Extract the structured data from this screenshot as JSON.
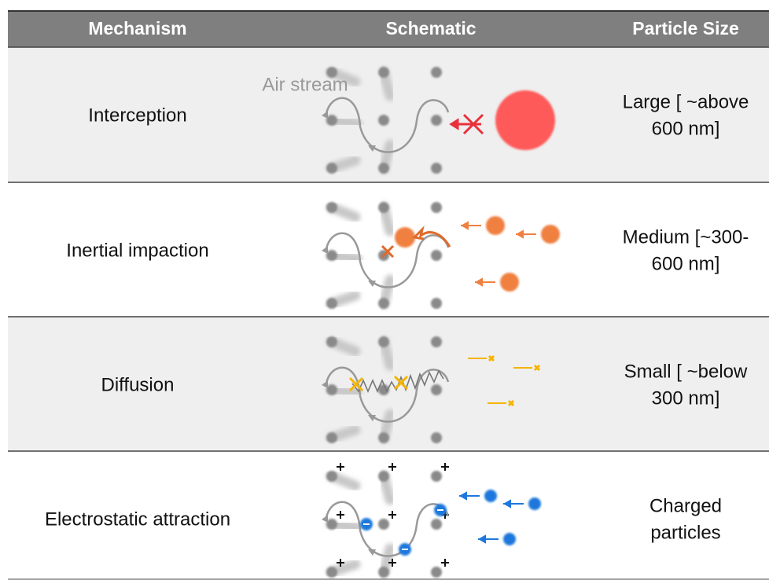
{
  "header": {
    "columns": [
      "Mechanism",
      "Schematic",
      "Particle Size"
    ]
  },
  "air_stream_label": "Air stream",
  "rows": [
    {
      "mechanism": "Interception",
      "particle_size": [
        "Large [ ~above",
        "600 nm]"
      ]
    },
    {
      "mechanism": "Inertial impaction",
      "particle_size": [
        "Medium [~300-",
        "600 nm]"
      ]
    },
    {
      "mechanism": "Diffusion",
      "particle_size": [
        "Small [ ~below",
        "300 nm]"
      ]
    },
    {
      "mechanism": "Electrostatic attraction",
      "particle_size": [
        "Charged",
        "particles"
      ]
    }
  ]
}
